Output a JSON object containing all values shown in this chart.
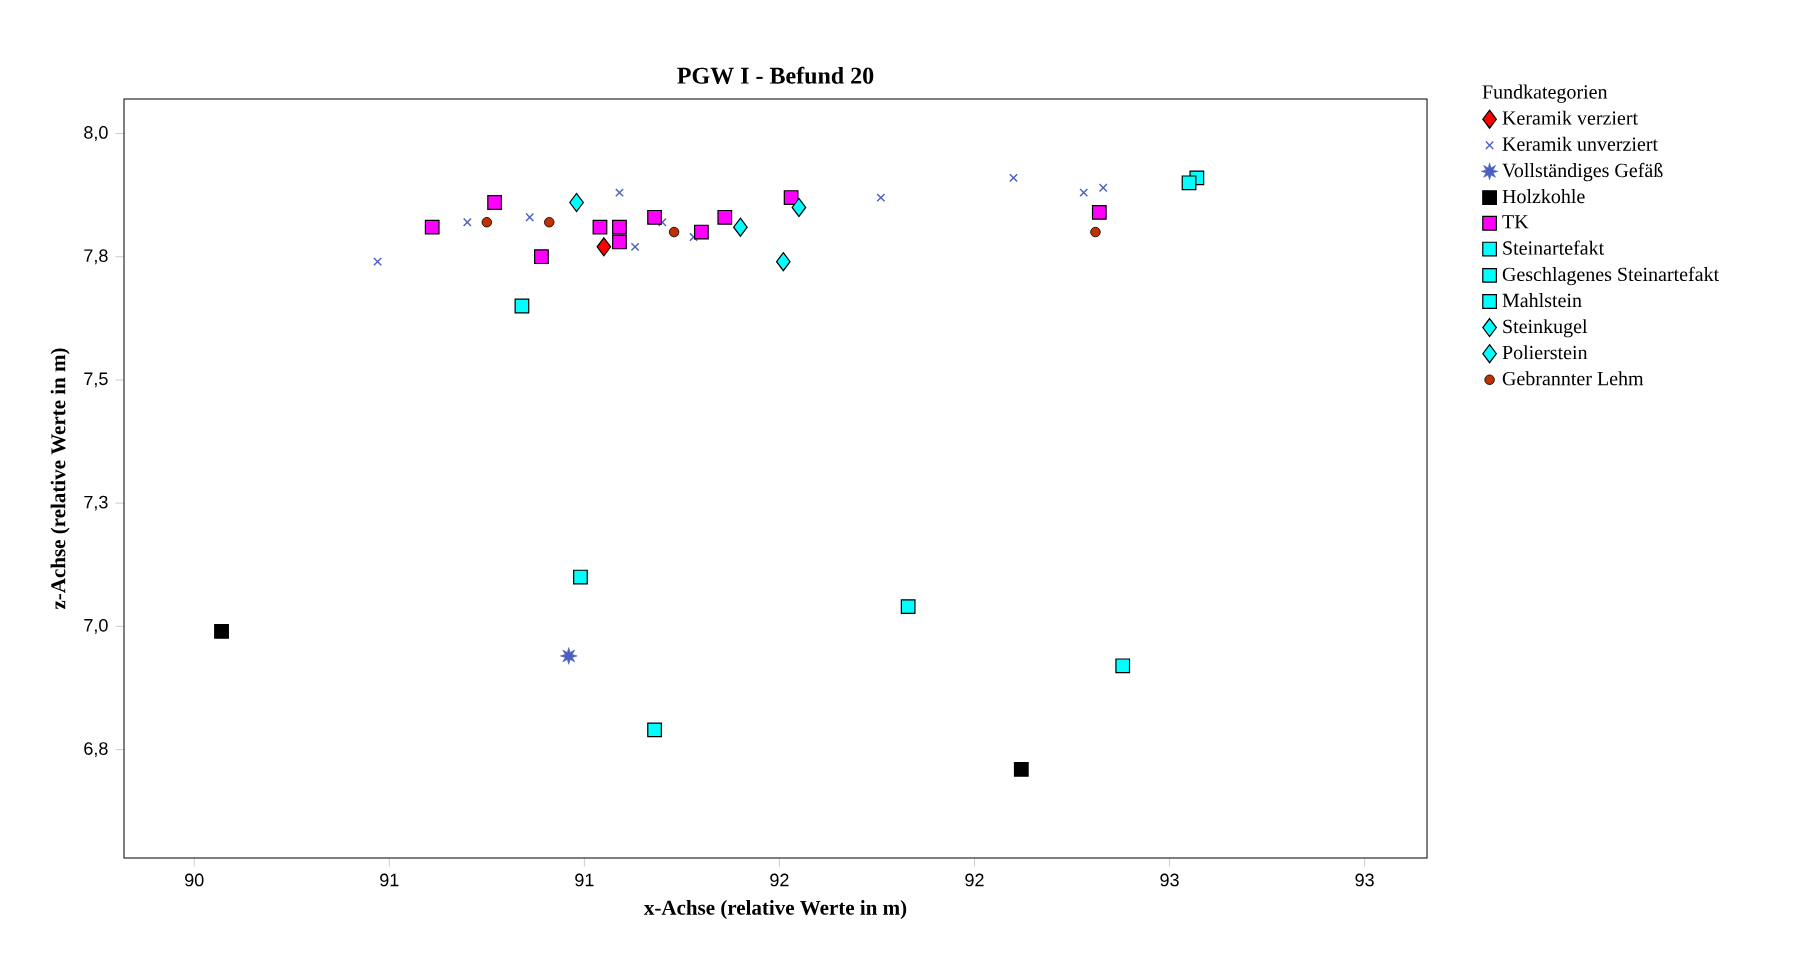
{
  "chart_data": {
    "type": "scatter",
    "title": "PGW I - Befund 20",
    "xlabel": "x-Achse (relative Werte in m)",
    "ylabel": "z-Achse (relative Werte in m)",
    "legend_title": "Fundkategorien",
    "legend": "right",
    "xlim": [
      89.82,
      93.16
    ],
    "ylim": [
      6.53,
      8.07
    ],
    "xticks": [
      {
        "value": 90,
        "label": "90"
      },
      {
        "value": 90.5,
        "label": "91"
      },
      {
        "value": 91,
        "label": "91"
      },
      {
        "value": 91.5,
        "label": "92"
      },
      {
        "value": 92,
        "label": "92"
      },
      {
        "value": 92.5,
        "label": "93"
      },
      {
        "value": 93,
        "label": "93"
      }
    ],
    "yticks": [
      {
        "value": 8.0,
        "label": "8,0"
      },
      {
        "value": 7.75,
        "label": "7,8"
      },
      {
        "value": 7.5,
        "label": "7,5"
      },
      {
        "value": 7.25,
        "label": "7,3"
      },
      {
        "value": 7.0,
        "label": "7,0"
      },
      {
        "value": 6.75,
        "label": "6,8"
      }
    ],
    "series": [
      {
        "name": "Keramik verziert",
        "color": "#ff0000",
        "marker": "diamond",
        "x": [
          91.05
        ],
        "values": [
          7.77
        ]
      },
      {
        "name": "Keramik unverziert",
        "color": "#4a5fbf",
        "marker": "cross",
        "x": [
          90.47,
          90.7,
          90.86,
          91.09,
          91.13,
          91.2,
          91.28,
          91.34,
          91.76,
          92.1,
          92.28,
          92.33
        ],
        "values": [
          7.74,
          7.82,
          7.83,
          7.88,
          7.77,
          7.82,
          7.79,
          null,
          7.87,
          7.91,
          7.88,
          7.89
        ]
      },
      {
        "name": "Vollständiges Gefäß",
        "color": "#4a5fbf",
        "marker": "star",
        "x": [
          90.96
        ],
        "values": [
          6.94
        ]
      },
      {
        "name": "Holzkohle",
        "color": "#000000",
        "marker": "square",
        "x": [
          90.07,
          92.12
        ],
        "values": [
          6.99,
          6.71
        ]
      },
      {
        "name": "TK",
        "color": "#ff00ff",
        "marker": "square",
        "x": [
          90.61,
          90.77,
          90.89,
          91.04,
          91.09,
          91.09,
          91.18,
          91.3,
          91.36,
          91.53,
          92.32
        ],
        "values": [
          7.81,
          7.86,
          7.75,
          7.81,
          7.81,
          7.78,
          7.83,
          7.8,
          7.83,
          7.87,
          7.84
        ]
      },
      {
        "name": "Steinartefakt",
        "color": "#00ffff",
        "marker": "square",
        "x": [
          90.84,
          90.99,
          91.83,
          92.38,
          92.57
        ],
        "values": [
          7.65,
          7.1,
          7.04,
          6.92,
          7.91
        ]
      },
      {
        "name": "Geschlagenes Steinartefakt",
        "color": "#00ffff",
        "marker": "square",
        "x": [
          92.55
        ],
        "values": [
          7.9
        ]
      },
      {
        "name": "Mahlstein",
        "color": "#00ffff",
        "marker": "square",
        "x": [
          91.18
        ],
        "values": [
          6.79
        ]
      },
      {
        "name": "Steinkugel",
        "color": "#00ffff",
        "marker": "diamond",
        "x": [
          91.4,
          91.55
        ],
        "values": [
          7.81,
          7.85
        ]
      },
      {
        "name": "Polierstein",
        "color": "#00ffff",
        "marker": "diamond",
        "x": [
          90.98,
          91.51
        ],
        "values": [
          7.86,
          7.74
        ]
      },
      {
        "name": "Gebrannter Lehm",
        "color": "#c03000",
        "marker": "circle",
        "x": [
          90.75,
          90.91,
          91.23,
          92.31
        ],
        "values": [
          7.82,
          7.82,
          7.8,
          7.8
        ]
      }
    ]
  }
}
